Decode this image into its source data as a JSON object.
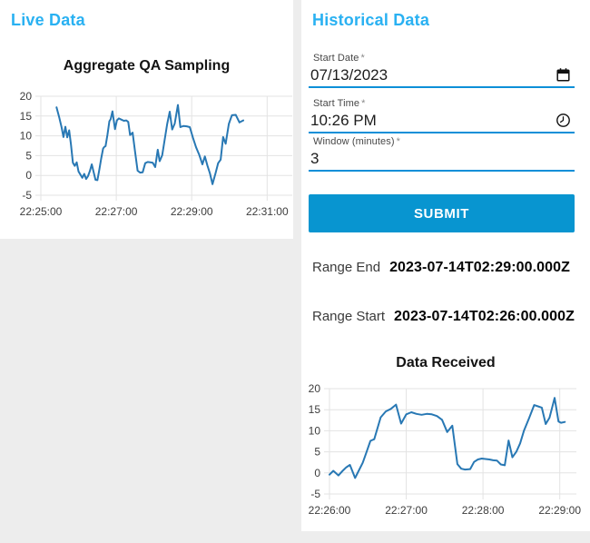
{
  "live_panel": {
    "heading": "Live Data"
  },
  "historical_panel": {
    "heading": "Historical Data",
    "fields": [
      {
        "label": "Start Date",
        "required_marker": "*",
        "value": "07/13/2023",
        "icon": "calendar"
      },
      {
        "label": "Start Time",
        "required_marker": "*",
        "value": "10:26 PM",
        "icon": "clock"
      },
      {
        "label": "Window (minutes)",
        "required_marker": "*",
        "value": "3",
        "icon": ""
      }
    ],
    "submit_label": "SUBMIT",
    "range_end": {
      "label": "Range End",
      "value": "2023-07-14T02:29:00.000Z"
    },
    "range_start": {
      "label": "Range Start",
      "value": "2023-07-14T02:26:00.000Z"
    }
  },
  "colors": {
    "heading_blue": "#29b1f2",
    "field_underline": "#0d8fd8",
    "submit_bg": "#0895d0",
    "line_blue": "#2878b4",
    "grid_gray": "#e3e3e3"
  },
  "chart_data": [
    {
      "type": "line",
      "title": "Aggregate QA Sampling",
      "xlabel": "",
      "ylabel": "",
      "x_domain": [
        0,
        400
      ],
      "y_domain": [
        -5,
        20
      ],
      "x_ticks": [
        {
          "t": 0,
          "label": "22:25:00"
        },
        {
          "t": 120,
          "label": "22:27:00"
        },
        {
          "t": 240,
          "label": "22:29:00"
        },
        {
          "t": 360,
          "label": "22:31:00"
        }
      ],
      "y_ticks": [
        20,
        15,
        10,
        5,
        0,
        -5
      ],
      "grid": true,
      "legend": "none",
      "line_color": "#2878b4",
      "grid_color": "#e3e3e3",
      "tick_color": "#3d3d3d",
      "points": [
        [
          25,
          17.2
        ],
        [
          29,
          14.8
        ],
        [
          33,
          12.1
        ],
        [
          36,
          9.7
        ],
        [
          39,
          12.3
        ],
        [
          42,
          9.6
        ],
        [
          45,
          11.4
        ],
        [
          48,
          7.8
        ],
        [
          51,
          3.2
        ],
        [
          54,
          2.4
        ],
        [
          57,
          3.3
        ],
        [
          60,
          1.0
        ],
        [
          63,
          0.2
        ],
        [
          66,
          -0.6
        ],
        [
          69,
          0.4
        ],
        [
          72,
          -0.9
        ],
        [
          75,
          -0.2
        ],
        [
          78,
          1.1
        ],
        [
          81,
          2.8
        ],
        [
          84,
          0.8
        ],
        [
          87,
          -1.1
        ],
        [
          90,
          -1.2
        ],
        [
          93,
          1.4
        ],
        [
          96,
          4.3
        ],
        [
          99,
          6.8
        ],
        [
          101,
          7.2
        ],
        [
          103,
          7.4
        ],
        [
          106,
          10.3
        ],
        [
          109,
          13.7
        ],
        [
          111,
          14.2
        ],
        [
          114,
          16.2
        ],
        [
          118,
          11.7
        ],
        [
          121,
          13.9
        ],
        [
          124,
          14.4
        ],
        [
          128,
          14.1
        ],
        [
          132,
          13.8
        ],
        [
          136,
          13.9
        ],
        [
          139,
          13.5
        ],
        [
          142,
          10.2
        ],
        [
          146,
          10.8
        ],
        [
          150,
          5.8
        ],
        [
          154,
          1.2
        ],
        [
          158,
          0.7
        ],
        [
          162,
          0.8
        ],
        [
          166,
          3.1
        ],
        [
          170,
          3.4
        ],
        [
          174,
          3.3
        ],
        [
          178,
          3.2
        ],
        [
          182,
          2.1
        ],
        [
          186,
          6.5
        ],
        [
          189,
          3.6
        ],
        [
          193,
          5.1
        ],
        [
          197,
          9.0
        ],
        [
          201,
          13.0
        ],
        [
          205,
          16.1
        ],
        [
          209,
          11.6
        ],
        [
          213,
          13.1
        ],
        [
          218,
          17.8
        ],
        [
          222,
          12.2
        ],
        [
          227,
          12.5
        ],
        [
          232,
          12.4
        ],
        [
          237,
          12.2
        ],
        [
          242,
          9.5
        ],
        [
          247,
          7.1
        ],
        [
          252,
          5.2
        ],
        [
          257,
          2.8
        ],
        [
          261,
          4.8
        ],
        [
          265,
          2.5
        ],
        [
          269,
          0.5
        ],
        [
          273,
          -2.2
        ],
        [
          278,
          0.6
        ],
        [
          282,
          3.1
        ],
        [
          286,
          4.0
        ],
        [
          290,
          9.7
        ],
        [
          294,
          8.0
        ],
        [
          299,
          13.0
        ],
        [
          304,
          15.2
        ],
        [
          310,
          15.3
        ],
        [
          316,
          13.4
        ],
        [
          322,
          13.9
        ]
      ]
    },
    {
      "type": "line",
      "title": "Data Received",
      "xlabel": "",
      "ylabel": "",
      "x_domain": [
        0,
        193
      ],
      "y_domain": [
        -5,
        20
      ],
      "x_ticks": [
        {
          "t": 0,
          "label": "22:26:00"
        },
        {
          "t": 60,
          "label": "22:27:00"
        },
        {
          "t": 120,
          "label": "22:28:00"
        },
        {
          "t": 180,
          "label": "22:29:00"
        }
      ],
      "y_ticks": [
        20,
        15,
        10,
        5,
        0,
        -5
      ],
      "grid": true,
      "legend": "none",
      "line_color": "#2878b4",
      "grid_color": "#e3e3e3",
      "tick_color": "#3d3d3d",
      "points": [
        [
          0,
          -0.4
        ],
        [
          3,
          0.5
        ],
        [
          7,
          -0.6
        ],
        [
          10,
          0.4
        ],
        [
          13,
          1.3
        ],
        [
          16,
          1.9
        ],
        [
          20,
          -1.2
        ],
        [
          23,
          0.6
        ],
        [
          26,
          2.4
        ],
        [
          29,
          5.0
        ],
        [
          32,
          7.6
        ],
        [
          35,
          8.0
        ],
        [
          40,
          13.2
        ],
        [
          44,
          14.6
        ],
        [
          48,
          15.2
        ],
        [
          52,
          16.2
        ],
        [
          56,
          11.7
        ],
        [
          60,
          13.9
        ],
        [
          64,
          14.4
        ],
        [
          68,
          14.0
        ],
        [
          72,
          13.8
        ],
        [
          76,
          14.0
        ],
        [
          80,
          13.9
        ],
        [
          84,
          13.5
        ],
        [
          88,
          12.6
        ],
        [
          92,
          9.7
        ],
        [
          96,
          11.2
        ],
        [
          100,
          2.1
        ],
        [
          103,
          1.0
        ],
        [
          106,
          0.8
        ],
        [
          110,
          0.9
        ],
        [
          113,
          2.6
        ],
        [
          116,
          3.2
        ],
        [
          119,
          3.4
        ],
        [
          122,
          3.3
        ],
        [
          125,
          3.2
        ],
        [
          128,
          3.0
        ],
        [
          131,
          2.9
        ],
        [
          134,
          2.0
        ],
        [
          137,
          1.8
        ],
        [
          140,
          7.7
        ],
        [
          143,
          3.7
        ],
        [
          146,
          5.0
        ],
        [
          149,
          7.0
        ],
        [
          152,
          10.0
        ],
        [
          156,
          13.0
        ],
        [
          160,
          16.1
        ],
        [
          163,
          15.8
        ],
        [
          166,
          15.5
        ],
        [
          169,
          11.6
        ],
        [
          172,
          13.1
        ],
        [
          176,
          17.8
        ],
        [
          179,
          12.2
        ],
        [
          181,
          11.9
        ],
        [
          184,
          12.1
        ]
      ]
    }
  ]
}
